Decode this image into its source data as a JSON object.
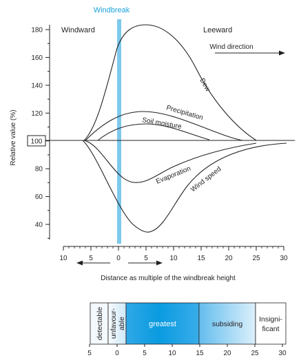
{
  "windbreak_label": "Windbreak",
  "windward_label": "Windward",
  "leeward_label": "Leeward",
  "wind_direction_label": "Wind direction",
  "ylabel": "Relative value (%)",
  "xlabel": "Distance as multiple of the windbreak height",
  "baseline_label": "100",
  "y_ticks": [
    "180",
    "160",
    "140",
    "120",
    "100",
    "80",
    "60",
    "40"
  ],
  "x_ticks": [
    "10",
    "5",
    "0",
    "5",
    "10",
    "15",
    "20",
    "25",
    "30"
  ],
  "curves": {
    "dew": "Dew",
    "precipitation": "Precipitation",
    "soil_moisture": "Soil moisture",
    "evaporation": "Evaporation",
    "wind_speed": "Wind speed"
  },
  "zones": [
    {
      "label": "detectable"
    },
    {
      "label": "unfavour-",
      "label2": "able"
    },
    {
      "label": "greatest"
    },
    {
      "label": "subsiding"
    },
    {
      "label": "Insigni-",
      "label2": "ficant"
    }
  ],
  "zone_ticks": [
    "5",
    "0",
    "5",
    "10",
    "15",
    "20",
    "25",
    "30"
  ],
  "colors": {
    "windbreak": "#7ec8ec",
    "windbreak_label": "#1aa3dc",
    "greatest_zone": "#0a9be0",
    "ink": "#231f20"
  }
}
